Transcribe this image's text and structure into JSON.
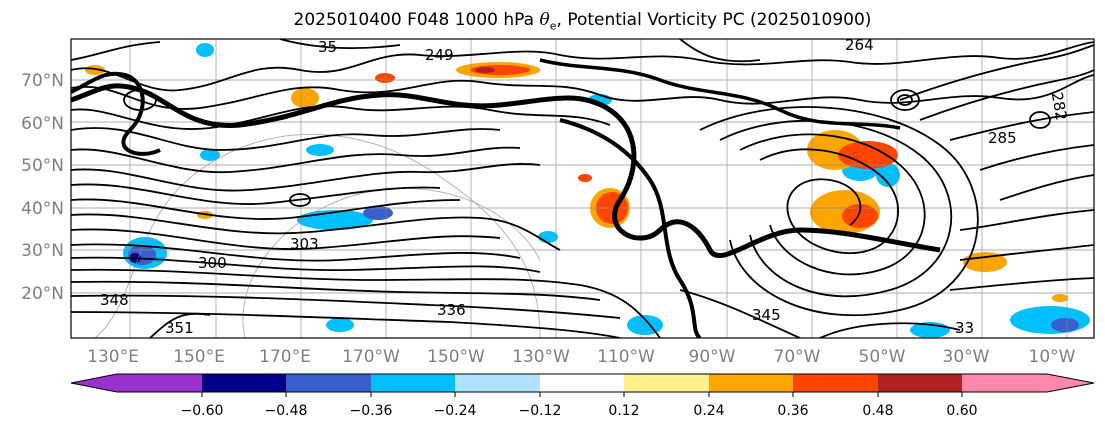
{
  "title": {
    "prefix": "2025010400 F048 1000 hPa ",
    "symbol": "θ",
    "subscript": "e",
    "suffix": ", Potential Vorticity PC (2025010900)"
  },
  "map": {
    "lat_labels": [
      "70°N",
      "60°N",
      "50°N",
      "40°N",
      "30°N",
      "20°N"
    ],
    "lon_labels": [
      "130°E",
      "150°E",
      "170°E",
      "170°W",
      "150°W",
      "130°W",
      "110°W",
      "90°W",
      "70°W",
      "50°W",
      "30°W",
      "10°W"
    ],
    "contour_labels": [
      "249",
      "264",
      "282",
      "285",
      "303",
      "336",
      "345",
      "351",
      "348",
      "33",
      "300",
      "35"
    ]
  },
  "colorbar": {
    "colors": [
      "#9932cc",
      "#00008b",
      "#3a5fcd",
      "#00bfff",
      "#b0e2ff",
      "#ffffff",
      "#fff08f",
      "#ffa500",
      "#ff4500",
      "#b22222",
      "#ff88aa"
    ],
    "ticks": [
      "−0.60",
      "−0.48",
      "−0.36",
      "−0.24",
      "−0.12",
      "0.12",
      "0.24",
      "0.36",
      "0.48",
      "0.60"
    ],
    "extend": "both"
  }
}
